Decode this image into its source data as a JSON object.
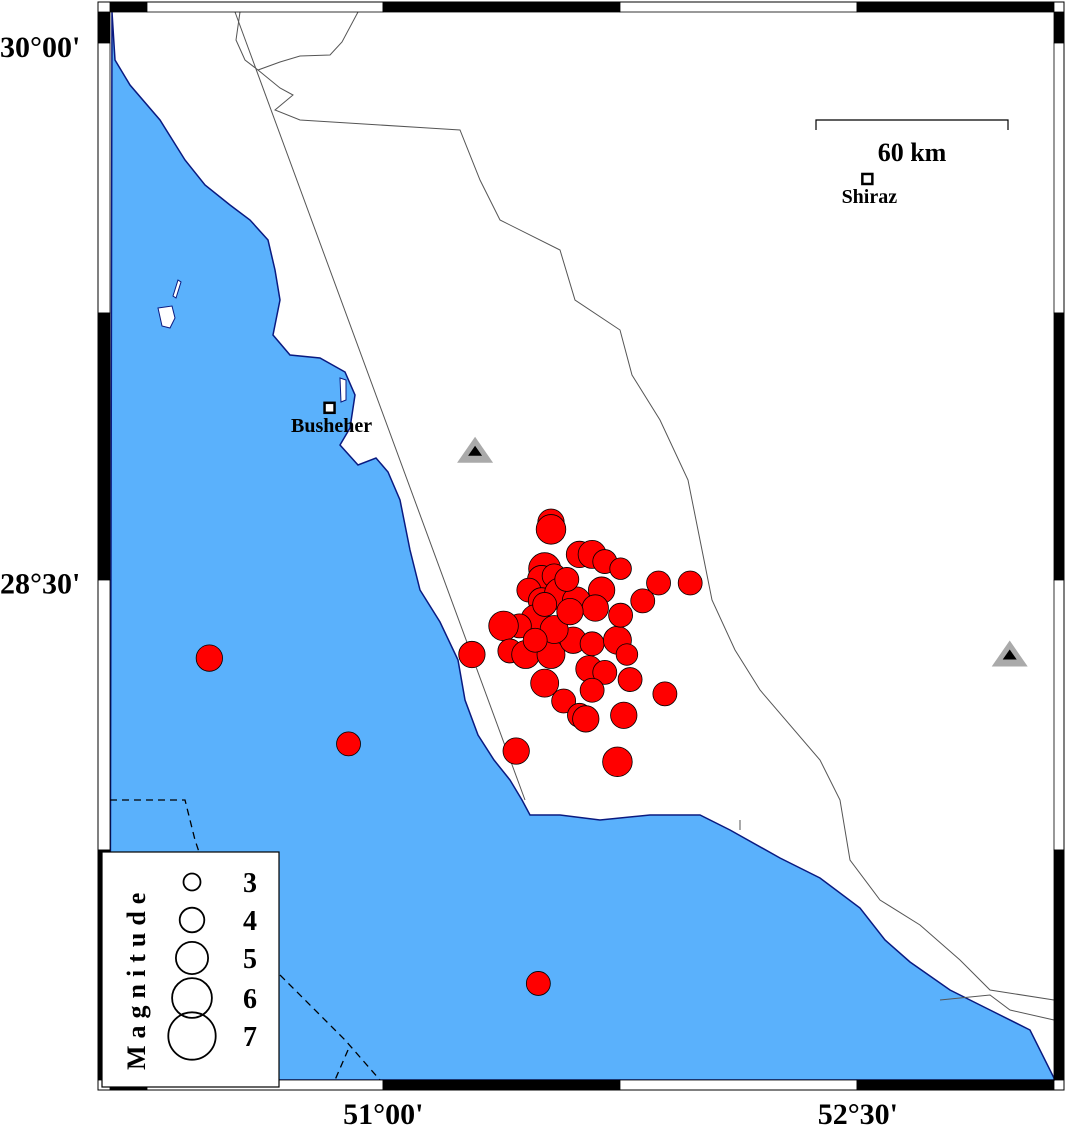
{
  "map": {
    "extent": {
      "lon_min": 50.136,
      "lon_max": 53.12,
      "lat_min": 27.1,
      "lat_max": 30.087
    },
    "colors": {
      "sea": "#5ab1fc",
      "coast": "#0a1a80",
      "land": "#ffffff",
      "quake_fill": "#ff0000",
      "station_outer": "#aaaaaa",
      "station_inner": "#000000"
    },
    "lat_labels": [
      {
        "value": 30.0,
        "text": "30°00'"
      },
      {
        "value": 28.5,
        "text": "28°30'"
      }
    ],
    "lon_labels": [
      {
        "value": 51.0,
        "text": "51°00'"
      },
      {
        "value": 52.5,
        "text": "52°30'"
      }
    ],
    "scale_bar": {
      "label": "60 km"
    },
    "cities": [
      {
        "name": "Busheher",
        "lon": 50.83,
        "lat": 28.98
      },
      {
        "name": "Shiraz",
        "lon": 52.53,
        "lat": 29.62
      }
    ],
    "stations": [
      {
        "lon": 51.29,
        "lat": 28.86
      },
      {
        "lon": 52.98,
        "lat": 28.29
      }
    ],
    "earthquakes": [
      {
        "lon": 51.53,
        "lat": 28.66,
        "mag": 3.8
      },
      {
        "lon": 51.53,
        "lat": 28.64,
        "mag": 4.2
      },
      {
        "lon": 50.45,
        "lat": 28.28,
        "mag": 3.8
      },
      {
        "lon": 50.89,
        "lat": 28.04,
        "mag": 3.5
      },
      {
        "lon": 51.28,
        "lat": 28.29,
        "mag": 3.8
      },
      {
        "lon": 51.49,
        "lat": 27.37,
        "mag": 3.5
      },
      {
        "lon": 51.42,
        "lat": 28.02,
        "mag": 3.8
      },
      {
        "lon": 51.74,
        "lat": 27.99,
        "mag": 4.2
      },
      {
        "lon": 51.76,
        "lat": 28.12,
        "mag": 3.8
      },
      {
        "lon": 51.89,
        "lat": 28.18,
        "mag": 3.5
      },
      {
        "lon": 51.87,
        "lat": 28.49,
        "mag": 3.5
      },
      {
        "lon": 51.97,
        "lat": 28.49,
        "mag": 3.5
      },
      {
        "lon": 51.82,
        "lat": 28.44,
        "mag": 3.5
      },
      {
        "lon": 51.78,
        "lat": 28.22,
        "mag": 3.5
      },
      {
        "lon": 51.62,
        "lat": 28.57,
        "mag": 3.8
      },
      {
        "lon": 51.66,
        "lat": 28.57,
        "mag": 4.0
      },
      {
        "lon": 51.7,
        "lat": 28.55,
        "mag": 3.5
      },
      {
        "lon": 51.75,
        "lat": 28.53,
        "mag": 3.2
      },
      {
        "lon": 51.51,
        "lat": 28.53,
        "mag": 4.5
      },
      {
        "lon": 51.5,
        "lat": 28.5,
        "mag": 4.0
      },
      {
        "lon": 51.54,
        "lat": 28.51,
        "mag": 3.5
      },
      {
        "lon": 51.46,
        "lat": 28.47,
        "mag": 3.5
      },
      {
        "lon": 51.5,
        "lat": 28.44,
        "mag": 3.8
      },
      {
        "lon": 51.56,
        "lat": 28.46,
        "mag": 4.5
      },
      {
        "lon": 51.61,
        "lat": 28.44,
        "mag": 4.0
      },
      {
        "lon": 51.48,
        "lat": 28.39,
        "mag": 4.0
      },
      {
        "lon": 51.43,
        "lat": 28.37,
        "mag": 3.5
      },
      {
        "lon": 51.38,
        "lat": 28.37,
        "mag": 4.2
      },
      {
        "lon": 51.4,
        "lat": 28.3,
        "mag": 3.5
      },
      {
        "lon": 51.45,
        "lat": 28.29,
        "mag": 4.0
      },
      {
        "lon": 51.53,
        "lat": 28.29,
        "mag": 4.0
      },
      {
        "lon": 51.6,
        "lat": 28.33,
        "mag": 3.8
      },
      {
        "lon": 51.66,
        "lat": 28.32,
        "mag": 3.5
      },
      {
        "lon": 51.74,
        "lat": 28.33,
        "mag": 4.0
      },
      {
        "lon": 51.75,
        "lat": 28.4,
        "mag": 3.5
      },
      {
        "lon": 51.69,
        "lat": 28.47,
        "mag": 3.8
      },
      {
        "lon": 51.67,
        "lat": 28.42,
        "mag": 3.8
      },
      {
        "lon": 51.54,
        "lat": 28.36,
        "mag": 4.0
      },
      {
        "lon": 51.51,
        "lat": 28.21,
        "mag": 4.0
      },
      {
        "lon": 51.57,
        "lat": 28.16,
        "mag": 3.5
      },
      {
        "lon": 51.62,
        "lat": 28.12,
        "mag": 3.5
      },
      {
        "lon": 51.64,
        "lat": 28.11,
        "mag": 3.8
      },
      {
        "lon": 51.65,
        "lat": 28.25,
        "mag": 3.8
      },
      {
        "lon": 51.7,
        "lat": 28.24,
        "mag": 3.5
      },
      {
        "lon": 51.66,
        "lat": 28.19,
        "mag": 3.5
      },
      {
        "lon": 51.77,
        "lat": 28.29,
        "mag": 3.2
      },
      {
        "lon": 51.59,
        "lat": 28.41,
        "mag": 3.8
      },
      {
        "lon": 51.51,
        "lat": 28.43,
        "mag": 3.5
      },
      {
        "lon": 51.58,
        "lat": 28.5,
        "mag": 3.5
      },
      {
        "lon": 51.48,
        "lat": 28.33,
        "mag": 3.5
      }
    ],
    "legend": {
      "title": "Magnitude",
      "entries": [
        {
          "mag": 3,
          "label": "3"
        },
        {
          "mag": 4,
          "label": "4"
        },
        {
          "mag": 5,
          "label": "5"
        },
        {
          "mag": 6,
          "label": "6"
        },
        {
          "mag": 7,
          "label": "7"
        }
      ]
    }
  }
}
